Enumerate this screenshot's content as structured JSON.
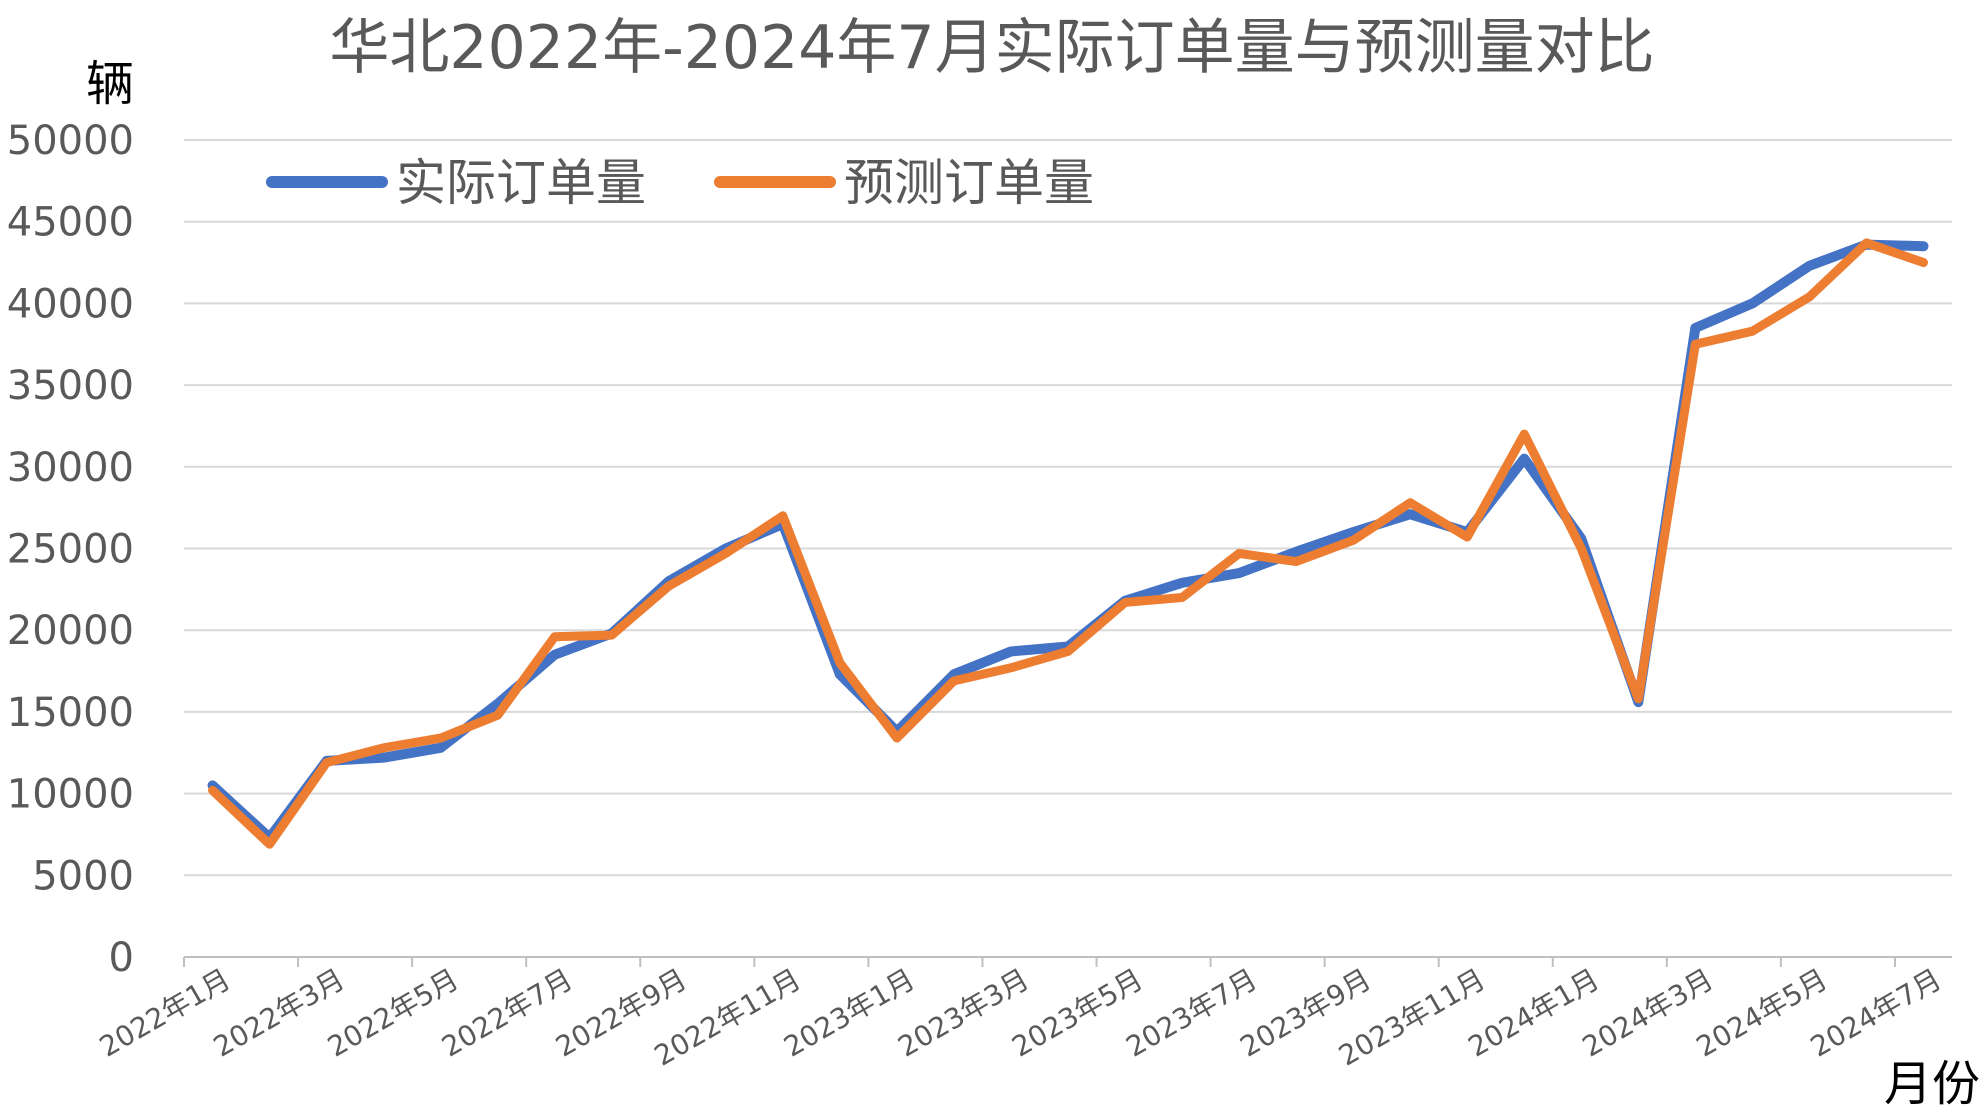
{
  "chart_data": {
    "type": "line",
    "title": "华北2022年-2024年7月实际订单量与预测量对比",
    "ylabel": "辆",
    "xlabel": "月份",
    "ylim": [
      0,
      50000
    ],
    "yticks": [
      "0",
      "5000",
      "10000",
      "15000",
      "20000",
      "25000",
      "30000",
      "35000",
      "40000",
      "45000",
      "50000"
    ],
    "x": [
      "2022年1月",
      "2022年2月",
      "2022年3月",
      "2022年4月",
      "2022年5月",
      "2022年6月",
      "2022年7月",
      "2022年8月",
      "2022年9月",
      "2022年10月",
      "2022年11月",
      "2022年12月",
      "2023年1月",
      "2023年2月",
      "2023年3月",
      "2023年4月",
      "2023年5月",
      "2023年6月",
      "2023年7月",
      "2023年8月",
      "2023年9月",
      "2023年10月",
      "2023年11月",
      "2023年12月",
      "2024年1月",
      "2024年2月",
      "2024年3月",
      "2024年4月",
      "2024年5月",
      "2024年6月",
      "2024年7月"
    ],
    "x_tick_labels": [
      "2022年1月",
      "2022年3月",
      "2022年5月",
      "2022年7月",
      "2022年9月",
      "2022年11月",
      "2023年1月",
      "2023年3月",
      "2023年5月",
      "2023年7月",
      "2023年9月",
      "2023年11月",
      "2024年1月",
      "2024年3月",
      "2024年5月",
      "2024年7月"
    ],
    "grid": true,
    "legend_position": "top-left",
    "series": [
      {
        "name": "实际订单量",
        "color": "#4472C4",
        "values": [
          10500,
          7300,
          12000,
          12200,
          12800,
          15500,
          18500,
          19800,
          23000,
          25000,
          26500,
          17300,
          13800,
          17300,
          18700,
          19000,
          21800,
          22900,
          23500,
          24800,
          26000,
          27100,
          26000,
          30500,
          25600,
          15600,
          38500,
          40000,
          42300,
          43600,
          43500
        ]
      },
      {
        "name": "预测订单量",
        "color": "#ED7D31",
        "values": [
          10200,
          6900,
          11900,
          12800,
          13400,
          14800,
          19600,
          19700,
          22700,
          24700,
          27000,
          18000,
          13400,
          16900,
          17700,
          18700,
          21700,
          22000,
          24700,
          24200,
          25500,
          27800,
          25700,
          32000,
          25000,
          15800,
          37500,
          38300,
          40400,
          43700,
          42500
        ]
      }
    ]
  }
}
